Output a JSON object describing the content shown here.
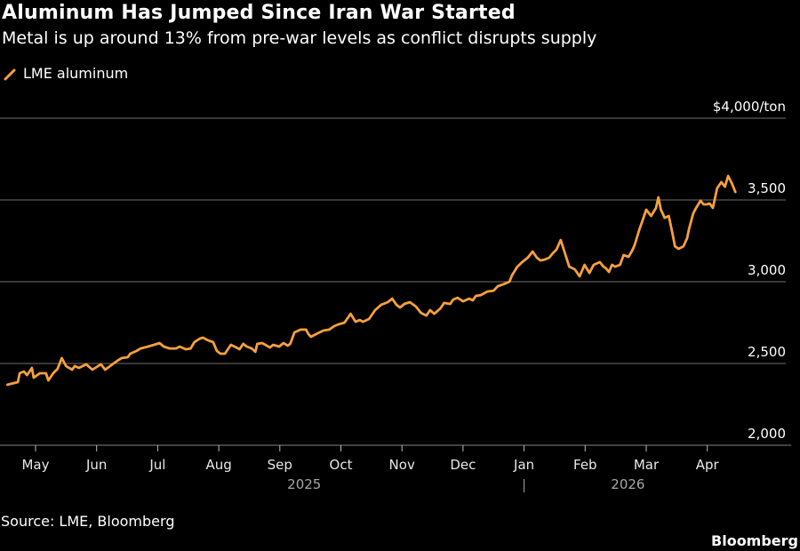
{
  "header": {
    "title": "Aluminum Has Jumped Since Iran War Started",
    "subtitle": "Metal is up around 13% from pre-war levels as conflict disrupts supply"
  },
  "footer": {
    "source": "Source: LME, Bloomberg",
    "brand": "Bloomberg"
  },
  "colors": {
    "background": "#000000",
    "series": "#f7a03c",
    "grid": "#5a5a5a"
  },
  "chart_data": {
    "type": "line",
    "title": "Aluminum Has Jumped Since Iran War Started",
    "subtitle": "Metal is up around 13% from pre-war levels as conflict disrupts supply",
    "xlabel": "",
    "ylabel": "$/ton",
    "ylim": [
      2000,
      4000
    ],
    "y_ticks": [
      2000,
      2500,
      3000,
      3500,
      4000
    ],
    "y_tick_labels": [
      "2,000",
      "2,500",
      "3,000",
      "3,500",
      "$4,000/ton"
    ],
    "grid": true,
    "legend": "top-left",
    "x_ticks": [
      {
        "label": "May",
        "month_index": 0
      },
      {
        "label": "Jun",
        "month_index": 1
      },
      {
        "label": "Jul",
        "month_index": 2
      },
      {
        "label": "Aug",
        "month_index": 3
      },
      {
        "label": "Sep",
        "month_index": 4
      },
      {
        "label": "Oct",
        "month_index": 5
      },
      {
        "label": "Nov",
        "month_index": 6
      },
      {
        "label": "Dec",
        "month_index": 7
      },
      {
        "label": "Jan",
        "month_index": 8
      },
      {
        "label": "Feb",
        "month_index": 9
      },
      {
        "label": "Mar",
        "month_index": 10
      },
      {
        "label": "Apr",
        "month_index": 11
      }
    ],
    "year_labels": [
      {
        "label": "2025",
        "month_index": 4.4
      },
      {
        "label": "2026",
        "month_index": 9.7
      }
    ],
    "year_divider_month_index": 8,
    "x_range_months": [
      -0.5,
      11.55
    ],
    "series": [
      {
        "name": "LME aluminum",
        "x_months": [
          -0.46,
          -0.29,
          -0.26,
          -0.19,
          -0.14,
          -0.06,
          -0.03,
          0.07,
          0.17,
          0.21,
          0.29,
          0.36,
          0.43,
          0.5,
          0.6,
          0.64,
          0.71,
          0.83,
          0.93,
          1.0,
          1.07,
          1.14,
          1.26,
          1.36,
          1.41,
          1.51,
          1.55,
          1.65,
          1.72,
          1.84,
          1.94,
          2.03,
          2.1,
          2.2,
          2.3,
          2.36,
          2.46,
          2.54,
          2.6,
          2.69,
          2.74,
          2.83,
          2.91,
          2.97,
          3.03,
          3.1,
          3.2,
          3.26,
          3.34,
          3.4,
          3.46,
          3.54,
          3.6,
          3.63,
          3.71,
          3.84,
          3.89,
          3.99,
          4.06,
          4.13,
          4.17,
          4.24,
          4.34,
          4.43,
          4.47,
          4.51,
          4.59,
          4.71,
          4.81,
          4.89,
          4.96,
          5.06,
          5.16,
          5.24,
          5.31,
          5.36,
          5.46,
          5.56,
          5.66,
          5.77,
          5.84,
          5.91,
          5.97,
          6.04,
          6.13,
          6.23,
          6.31,
          6.4,
          6.46,
          6.53,
          6.63,
          6.69,
          6.79,
          6.84,
          6.91,
          7.0,
          7.1,
          7.16,
          7.21,
          7.29,
          7.4,
          7.5,
          7.57,
          7.66,
          7.76,
          7.8,
          7.89,
          7.97,
          8.06,
          8.14,
          8.21,
          8.27,
          8.34,
          8.41,
          8.47,
          8.53,
          8.6,
          8.67,
          8.74,
          8.83,
          8.91,
          8.99,
          9.07,
          9.14,
          9.24,
          9.3,
          9.34,
          9.39,
          9.44,
          9.49,
          9.57,
          9.63,
          9.71,
          9.77,
          9.81,
          9.89,
          9.94,
          10.0,
          10.08,
          10.16,
          10.2,
          10.24,
          10.27,
          10.3,
          10.37,
          10.44,
          10.47,
          10.53,
          10.61,
          10.67,
          10.7,
          10.77,
          10.81,
          10.89,
          10.94,
          10.99,
          11.04,
          11.09,
          11.11,
          11.16,
          11.23,
          11.29,
          11.34,
          11.4,
          11.46,
          11.51,
          11.57,
          11.61,
          11.66
        ],
        "values": [
          2370,
          2386,
          2440,
          2451,
          2429,
          2473,
          2413,
          2440,
          2440,
          2397,
          2440,
          2467,
          2533,
          2484,
          2462,
          2484,
          2473,
          2495,
          2462,
          2478,
          2495,
          2462,
          2495,
          2522,
          2533,
          2538,
          2560,
          2576,
          2592,
          2603,
          2614,
          2625,
          2603,
          2592,
          2592,
          2603,
          2587,
          2592,
          2630,
          2652,
          2658,
          2641,
          2630,
          2576,
          2560,
          2560,
          2614,
          2603,
          2587,
          2620,
          2603,
          2592,
          2571,
          2620,
          2625,
          2598,
          2614,
          2603,
          2625,
          2609,
          2620,
          2690,
          2707,
          2707,
          2679,
          2663,
          2679,
          2701,
          2707,
          2728,
          2739,
          2750,
          2804,
          2755,
          2766,
          2755,
          2772,
          2826,
          2859,
          2875,
          2897,
          2859,
          2842,
          2864,
          2875,
          2848,
          2810,
          2793,
          2826,
          2804,
          2837,
          2870,
          2864,
          2891,
          2902,
          2880,
          2897,
          2886,
          2913,
          2918,
          2940,
          2945,
          2973,
          2984,
          3000,
          3038,
          3092,
          3120,
          3147,
          3185,
          3147,
          3130,
          3136,
          3147,
          3174,
          3196,
          3255,
          3174,
          3092,
          3076,
          3033,
          3103,
          3054,
          3103,
          3120,
          3092,
          3082,
          3060,
          3103,
          3092,
          3103,
          3163,
          3152,
          3190,
          3223,
          3321,
          3375,
          3440,
          3402,
          3451,
          3516,
          3440,
          3418,
          3391,
          3402,
          3277,
          3217,
          3201,
          3217,
          3266,
          3321,
          3418,
          3446,
          3495,
          3473,
          3473,
          3478,
          3451,
          3484,
          3571,
          3609,
          3581,
          3647,
          3603,
          3549
        ]
      }
    ]
  }
}
